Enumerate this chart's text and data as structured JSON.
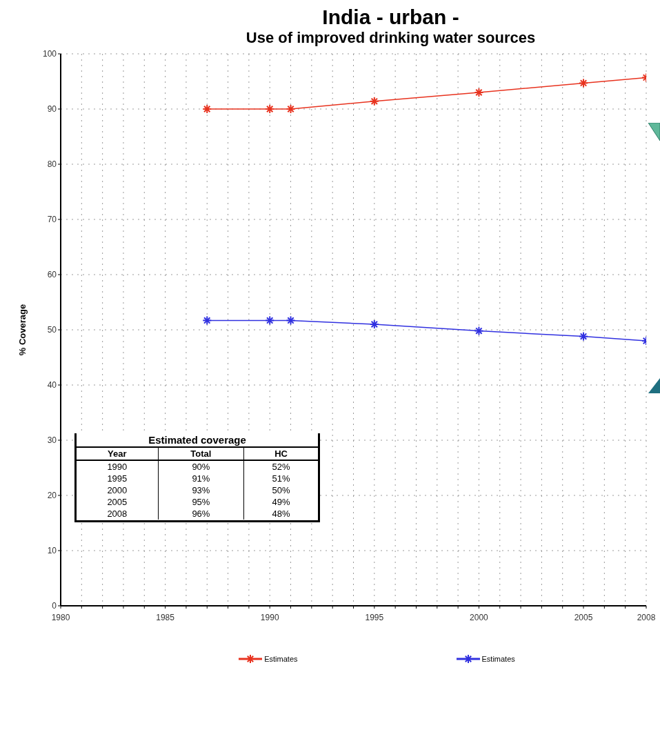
{
  "chart_data": {
    "type": "line",
    "title": "India  - urban -",
    "subtitle": "Use of improved drinking water sources",
    "ylabel": "% Coverage",
    "x": [
      1987,
      1990,
      1991,
      1995,
      2000,
      2005,
      2008
    ],
    "series": [
      {
        "name": "Estimates",
        "color": "#e8321e",
        "values": [
          90,
          90,
          90,
          91.4,
          93,
          94.7,
          95.7
        ]
      },
      {
        "name": "Estimates",
        "color": "#3030e0",
        "values": [
          51.7,
          51.7,
          51.7,
          51,
          49.8,
          48.8,
          48
        ]
      }
    ],
    "annotations": [
      "Estimated coverage",
      "Year",
      "Total",
      "HC",
      "1990",
      "90%",
      "52%",
      "1995",
      "91%",
      "51%",
      "2000",
      "93%",
      "50%",
      "2005",
      "95%",
      "49%",
      "2008",
      "96%",
      "48%"
    ],
    "xlim": [
      1980,
      2008
    ],
    "xticks": [
      1980,
      {
        "value": 1981,
        "label": null
      },
      {
        "value": 1982,
        "label": null
      },
      {
        "value": 1983,
        "label": null
      },
      {
        "value": 1984,
        "label": null
      },
      1985,
      {
        "value": 1986,
        "label": null
      },
      {
        "value": 1987,
        "label": null
      },
      {
        "value": 1988,
        "label": null
      },
      {
        "value": 1989,
        "label": null
      },
      1990,
      {
        "value": 1991,
        "label": null
      },
      {
        "value": 1992,
        "label": null
      },
      {
        "value": 1993,
        "label": null
      },
      {
        "value": 1994,
        "label": null
      },
      1995,
      {
        "value": 1996,
        "label": null
      },
      {
        "value": 1997,
        "label": null
      },
      {
        "value": 1998,
        "label": null
      },
      {
        "value": 1999,
        "label": null
      },
      2000,
      {
        "value": 2001,
        "label": null
      },
      {
        "value": 2002,
        "label": null
      },
      {
        "value": 2003,
        "label": null
      },
      {
        "value": 2004,
        "label": null
      },
      2005,
      {
        "value": 2006,
        "label": null
      },
      {
        "value": 2007,
        "label": null
      },
      2008
    ],
    "ylim": [
      0,
      100
    ],
    "yticks": [
      0,
      10,
      20,
      30,
      40,
      50,
      60,
      70,
      80,
      90,
      100
    ],
    "grid": true,
    "legend": "bottom",
    "marker": "cross",
    "line_style": "solid"
  }
}
